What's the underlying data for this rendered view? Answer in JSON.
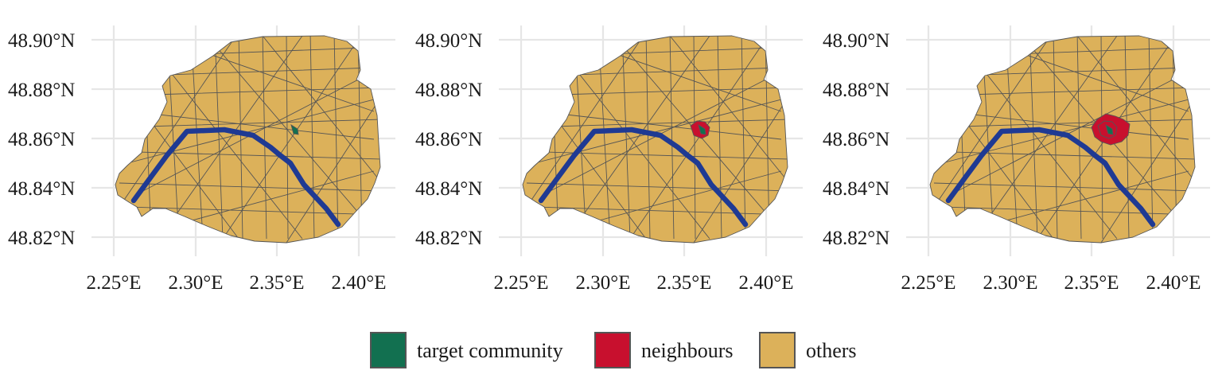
{
  "colors": {
    "target": "#127050",
    "neighbours": "#c8102e",
    "others": "#dcb15a",
    "border": "#555555",
    "river": "#1f3a93",
    "grid": "#e6e6e6"
  },
  "axes": {
    "x_ticks": [
      "2.25°E",
      "2.30°E",
      "2.35°E",
      "2.40°E"
    ],
    "y_ticks": [
      "48.90°N",
      "48.88°N",
      "48.86°N",
      "48.84°N",
      "48.82°N"
    ]
  },
  "panels": [
    {
      "id": "panel-1",
      "target_shown": true,
      "neighbour_ring": "none"
    },
    {
      "id": "panel-2",
      "target_shown": true,
      "neighbour_ring": "first-order"
    },
    {
      "id": "panel-3",
      "target_shown": true,
      "neighbour_ring": "second-order"
    }
  ],
  "legend": {
    "items": [
      {
        "label": "target community",
        "color_key": "target"
      },
      {
        "label": "neighbours",
        "color_key": "neighbours"
      },
      {
        "label": "others",
        "color_key": "others"
      }
    ]
  }
}
